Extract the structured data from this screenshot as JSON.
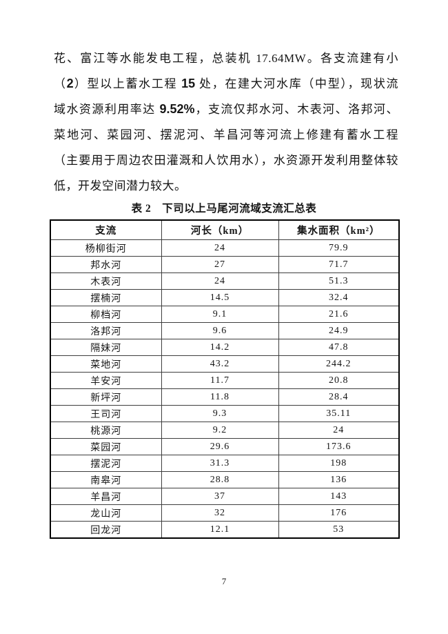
{
  "document": {
    "paragraph": {
      "lines": [
        {
          "segments": [
            {
              "text": "花、富江等水能发电工程，总装机 17.64MW。各支流建有小"
            }
          ]
        },
        {
          "segments": [
            {
              "text": "（"
            },
            {
              "text": "2",
              "emph": true
            },
            {
              "text": "）型以上蓄水工程 "
            },
            {
              "text": "15",
              "emph": true
            },
            {
              "text": " 处，在建大河水库（中型），现状流"
            }
          ]
        },
        {
          "segments": [
            {
              "text": "域水资源利用率达 "
            },
            {
              "text": "9.52%",
              "emph": true
            },
            {
              "text": "，支流仅邦水河、木表河、洛邦河、"
            }
          ]
        },
        {
          "segments": [
            {
              "text": "菜地河、菜园河、摆泥河、羊昌河等河流上修建有蓄水工程"
            }
          ]
        },
        {
          "segments": [
            {
              "text": "（主要用于周边农田灌溉和人饮用水），水资源开发利用整体较"
            }
          ]
        },
        {
          "segments": [
            {
              "text": "低，开发空间潜力较大。"
            }
          ],
          "last": true
        }
      ]
    },
    "table": {
      "caption": "表 2　下司以上马尾河流域支流汇总表",
      "headers": [
        "支流",
        "河长（km）",
        "集水面积（km²）"
      ],
      "rows": [
        [
          "杨柳街河",
          "24",
          "79.9"
        ],
        [
          "邦水河",
          "27",
          "71.7"
        ],
        [
          "木表河",
          "24",
          "51.3"
        ],
        [
          "摆楠河",
          "14.5",
          "32.4"
        ],
        [
          "柳档河",
          "9.1",
          "21.6"
        ],
        [
          "洛邦河",
          "9.6",
          "24.9"
        ],
        [
          "隔妹河",
          "14.2",
          "47.8"
        ],
        [
          "菜地河",
          "43.2",
          "244.2"
        ],
        [
          "羊安河",
          "11.7",
          "20.8"
        ],
        [
          "新坪河",
          "11.8",
          "28.4"
        ],
        [
          "王司河",
          "9.3",
          "35.11"
        ],
        [
          "桃源河",
          "9.2",
          "24"
        ],
        [
          "菜园河",
          "29.6",
          "173.6"
        ],
        [
          "摆泥河",
          "31.3",
          "198"
        ],
        [
          "南皋河",
          "28.8",
          "136"
        ],
        [
          "羊昌河",
          "37",
          "143"
        ],
        [
          "龙山河",
          "32",
          "176"
        ],
        [
          "回龙河",
          "12.1",
          "53"
        ]
      ]
    },
    "footer": {
      "page_number": "7"
    }
  }
}
